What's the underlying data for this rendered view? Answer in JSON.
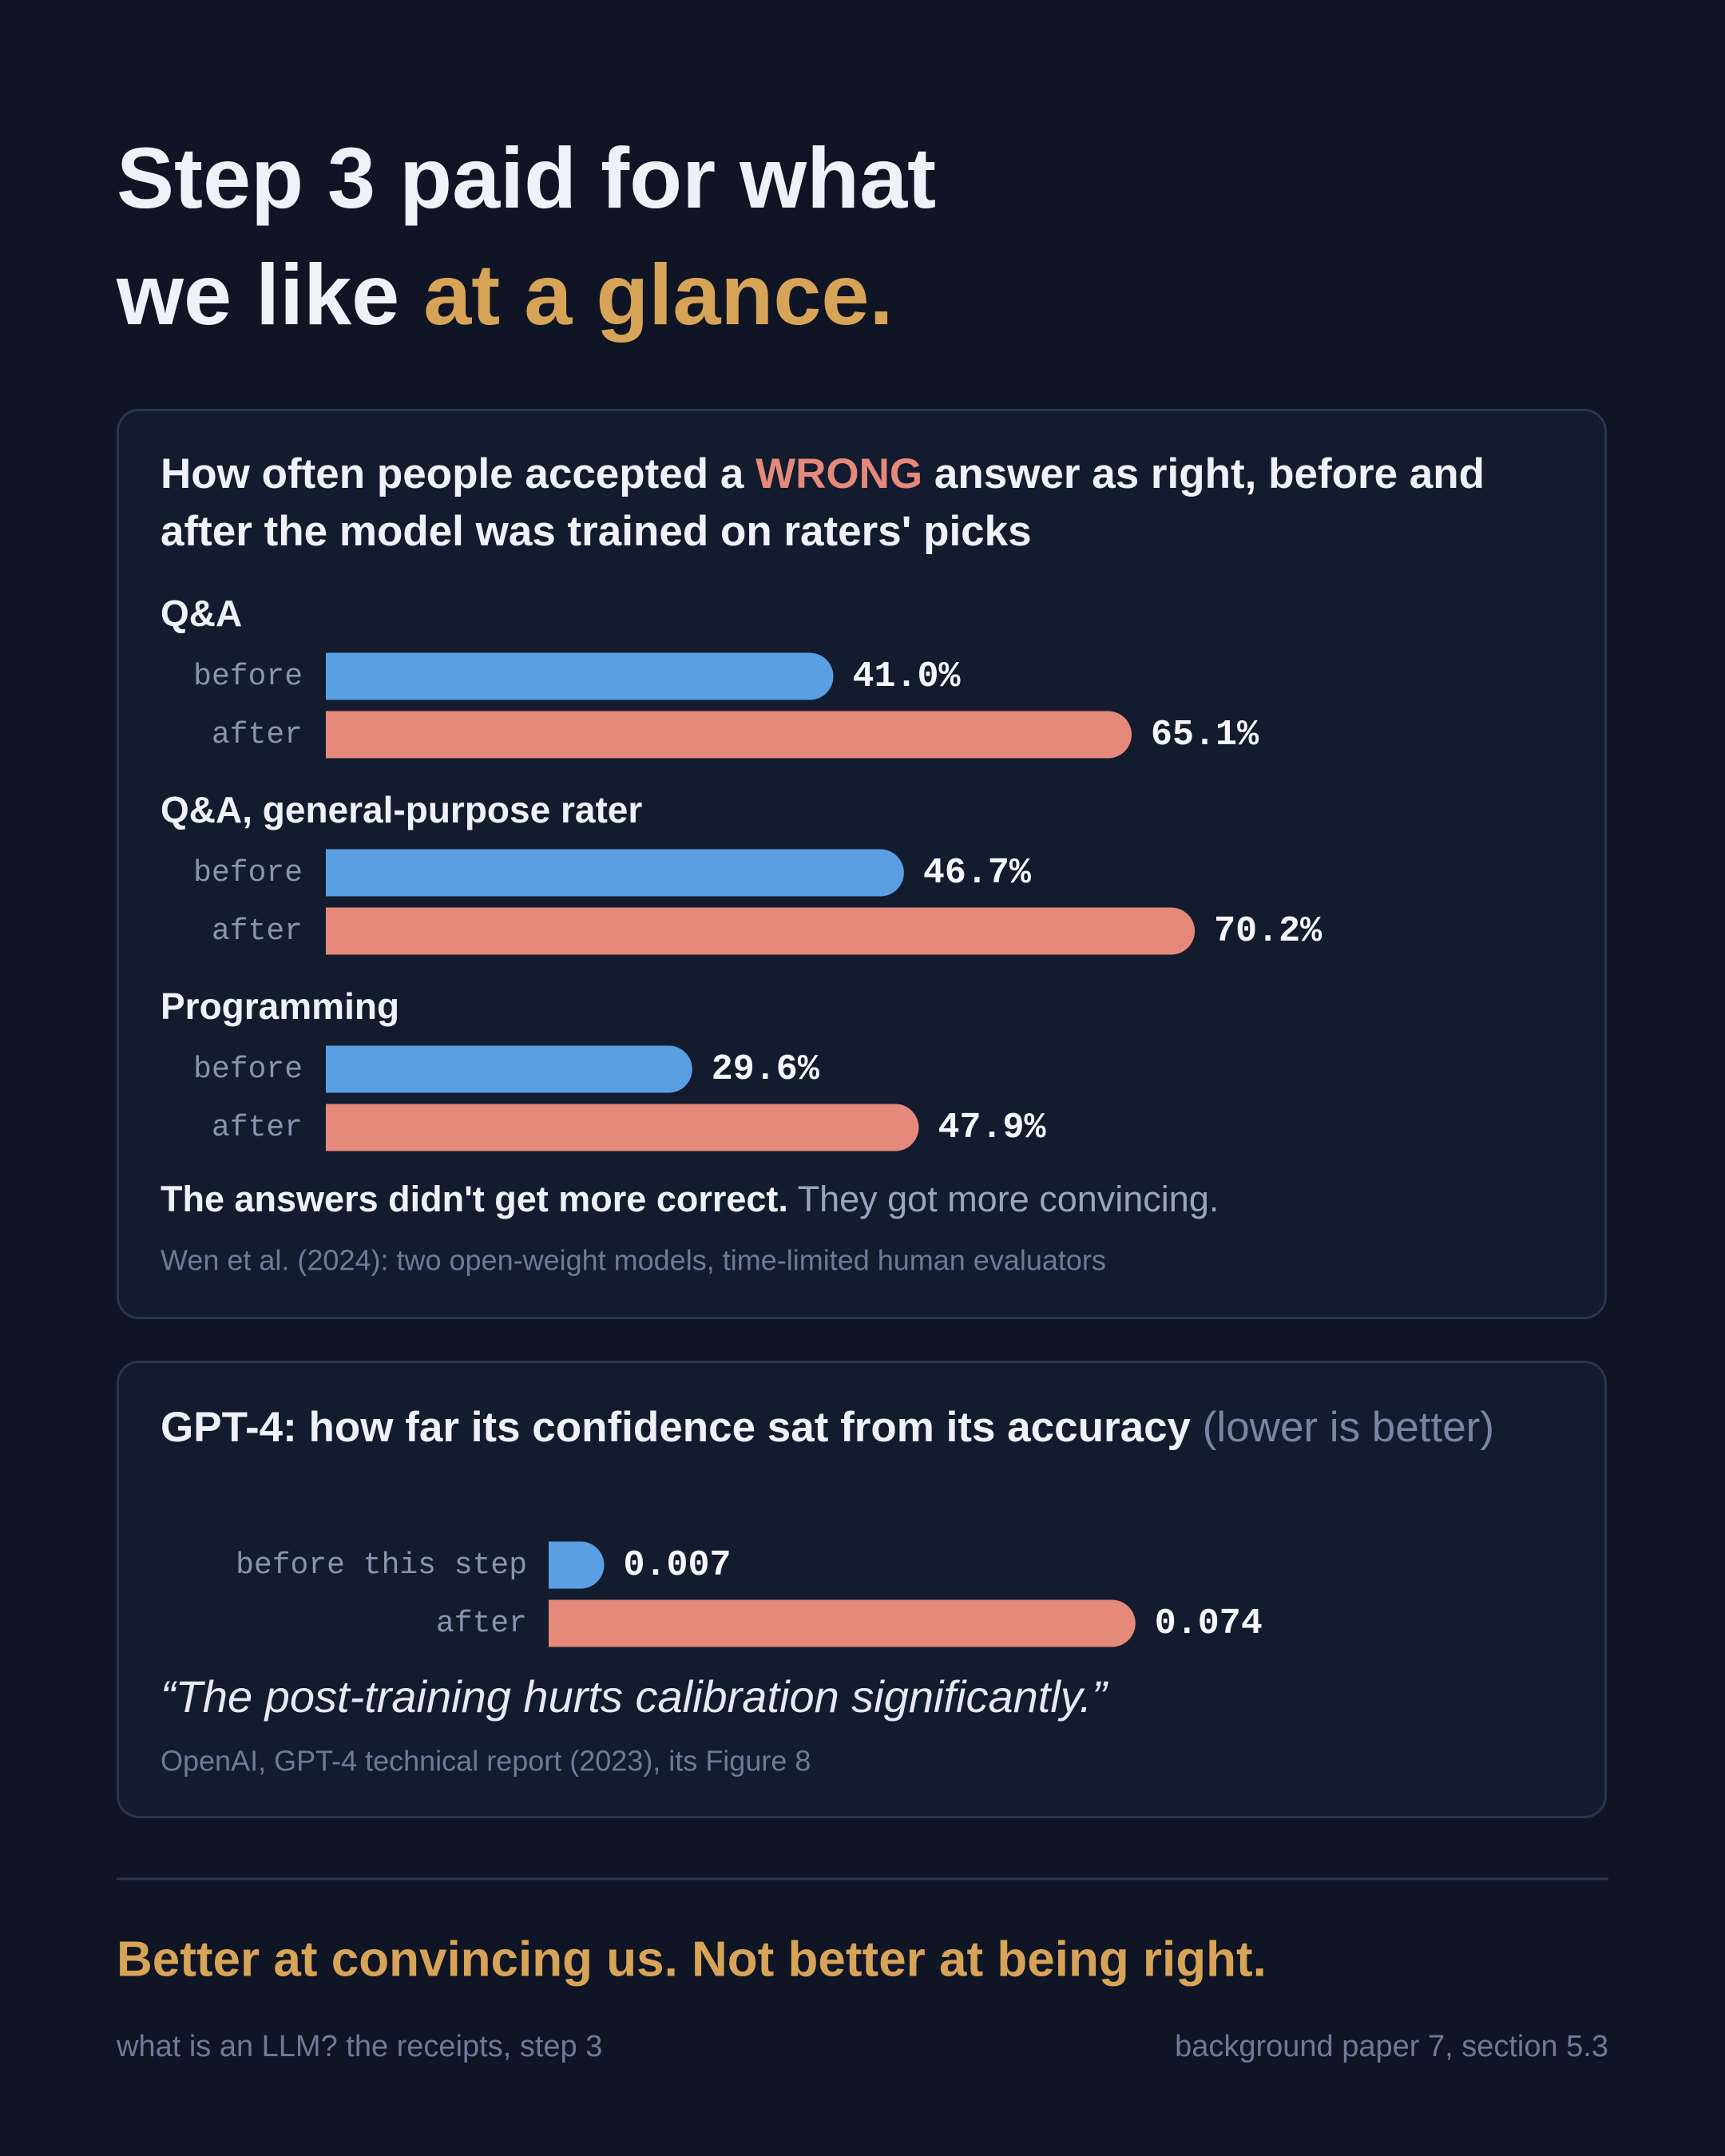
{
  "header": {
    "title_parts": [
      "Step 3 paid for what",
      "we like ",
      "at a glance."
    ]
  },
  "chart_data": [
    {
      "type": "grouped-bar",
      "title_parts": [
        "How often people accepted a ",
        "WRONG",
        " answer as right, before and after the model was trained on raters' picks"
      ],
      "categories": [
        "Q&A",
        "Q&A, general-purpose rater",
        "Programming"
      ],
      "series": [
        {
          "name": "before",
          "color": "#5b9fe3",
          "values": [
            41.0,
            46.7,
            29.6
          ],
          "value_labels": [
            "41.0%",
            "46.7%",
            "29.6%"
          ]
        },
        {
          "name": "after",
          "color": "#e5897b",
          "values": [
            65.1,
            70.2,
            47.9
          ],
          "value_labels": [
            "65.1%",
            "70.2%",
            "47.9%"
          ]
        }
      ],
      "xlim": [
        0,
        100
      ],
      "note_parts": [
        "The answers didn't get more correct.",
        " They got more convincing."
      ],
      "source": "Wen et al. (2024): two open-weight models, time-limited human evaluators"
    },
    {
      "type": "bar",
      "title_parts": [
        "GPT-4: how far its confidence sat from its accuracy",
        " (lower is better)"
      ],
      "categories": [
        "before this step",
        "after"
      ],
      "values": [
        0.007,
        0.074
      ],
      "colors": [
        "#5b9fe3",
        "#e5897b"
      ],
      "xlim": [
        0,
        0.128
      ],
      "quote": "“The post-training hurts calibration significantly.”",
      "source": "OpenAI, GPT-4 technical report (2023), its Figure 8"
    }
  ],
  "footer": {
    "conclusion": "Better at convincing us. Not better at being right.",
    "left": "what is an LLM? the receipts, step 3",
    "right": "background paper 7, section 5.3"
  }
}
